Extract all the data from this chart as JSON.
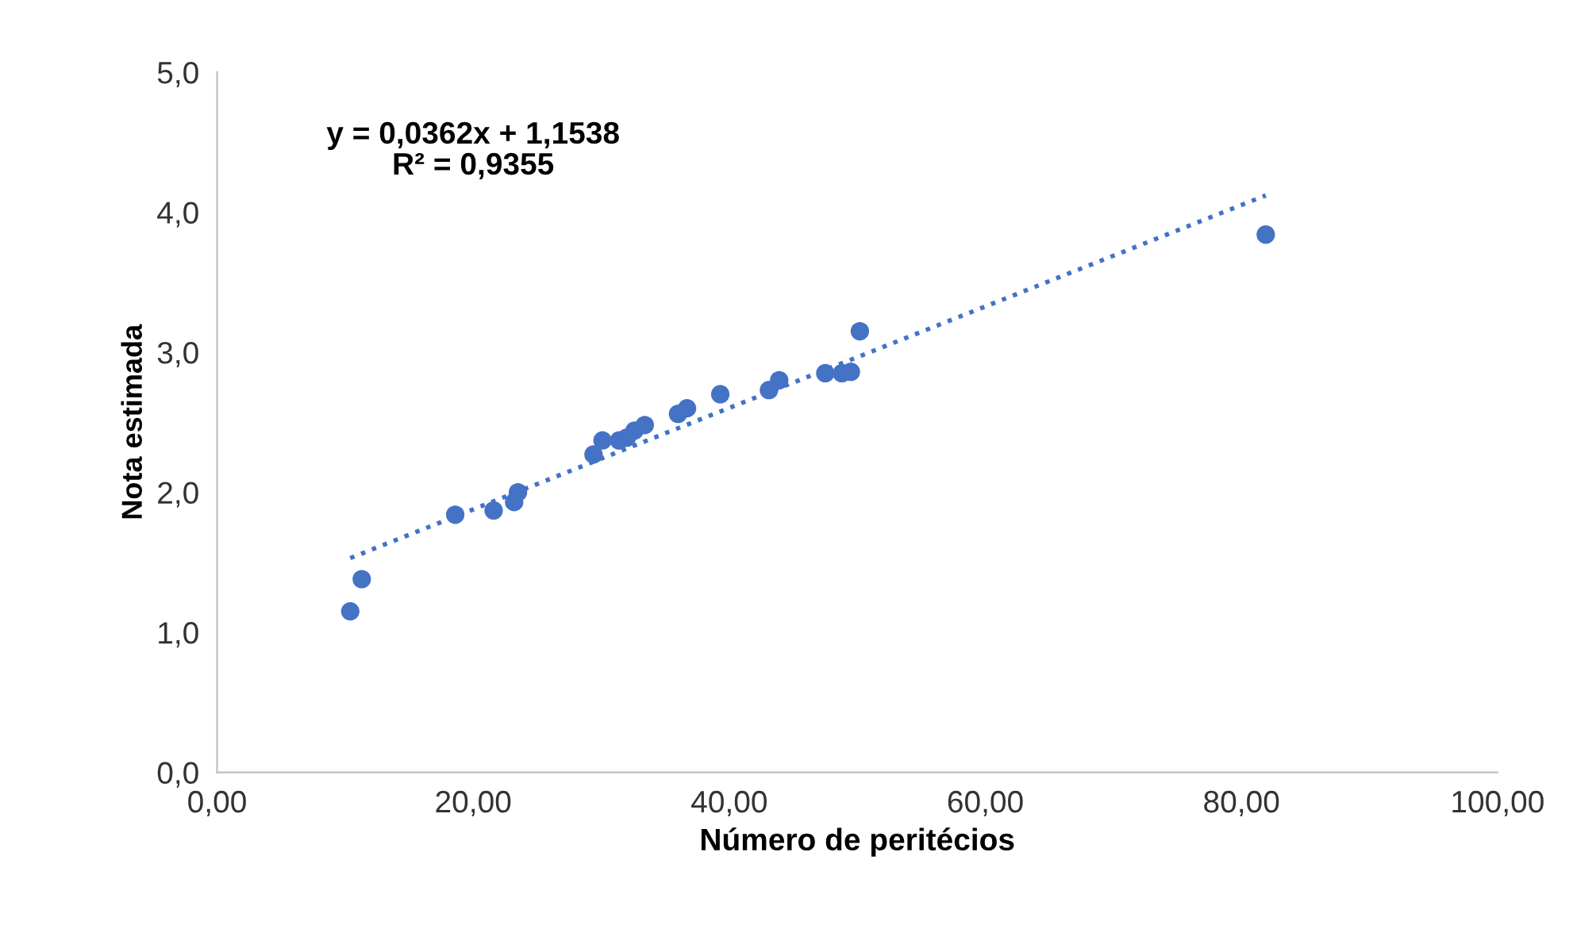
{
  "chart_data": {
    "type": "scatter",
    "xlabel": "Número de peritécios",
    "ylabel": "Nota estimada",
    "annotations": [
      "y = 0,0362x + 1,1538\nR² = 0,9355"
    ],
    "series": [
      {
        "color": "#4472c4",
        "marker": "circle",
        "x": [
          10.4,
          11.3,
          18.6,
          21.6,
          23.2,
          23.5,
          29.4,
          30.1,
          31.4,
          32.0,
          32.6,
          33.4,
          36.0,
          36.7,
          39.3,
          43.1,
          43.9,
          47.5,
          48.8,
          49.5,
          50.2,
          81.9
        ],
        "values": [
          1.15,
          1.38,
          1.84,
          1.87,
          1.93,
          2.0,
          2.27,
          2.37,
          2.37,
          2.39,
          2.44,
          2.48,
          2.56,
          2.6,
          2.7,
          2.73,
          2.8,
          2.85,
          2.85,
          2.86,
          3.15,
          3.84
        ]
      },
      {
        "type": "line",
        "color": "#4472c4",
        "line_style": "dotted",
        "marker": "none",
        "x": [
          10.4,
          81.9
        ],
        "values": [
          1.53,
          4.12
        ]
      }
    ],
    "xlim": [
      0,
      100
    ],
    "xticks": [
      {
        "value": 0,
        "label": "0,00"
      },
      {
        "value": 20,
        "label": "20,00"
      },
      {
        "value": 40,
        "label": "40,00"
      },
      {
        "value": 60,
        "label": "60,00"
      },
      {
        "value": 80,
        "label": "80,00"
      },
      {
        "value": 100,
        "label": "100,00"
      }
    ],
    "ylim": [
      0,
      5
    ],
    "yticks": [
      {
        "value": 0,
        "label": "0,0"
      },
      {
        "value": 1,
        "label": "1,0"
      },
      {
        "value": 2,
        "label": "2,0"
      },
      {
        "value": 3,
        "label": "3,0"
      },
      {
        "value": 4,
        "label": "4,0"
      },
      {
        "value": 5,
        "label": "5,0"
      }
    ],
    "grid": false,
    "legend": false
  }
}
